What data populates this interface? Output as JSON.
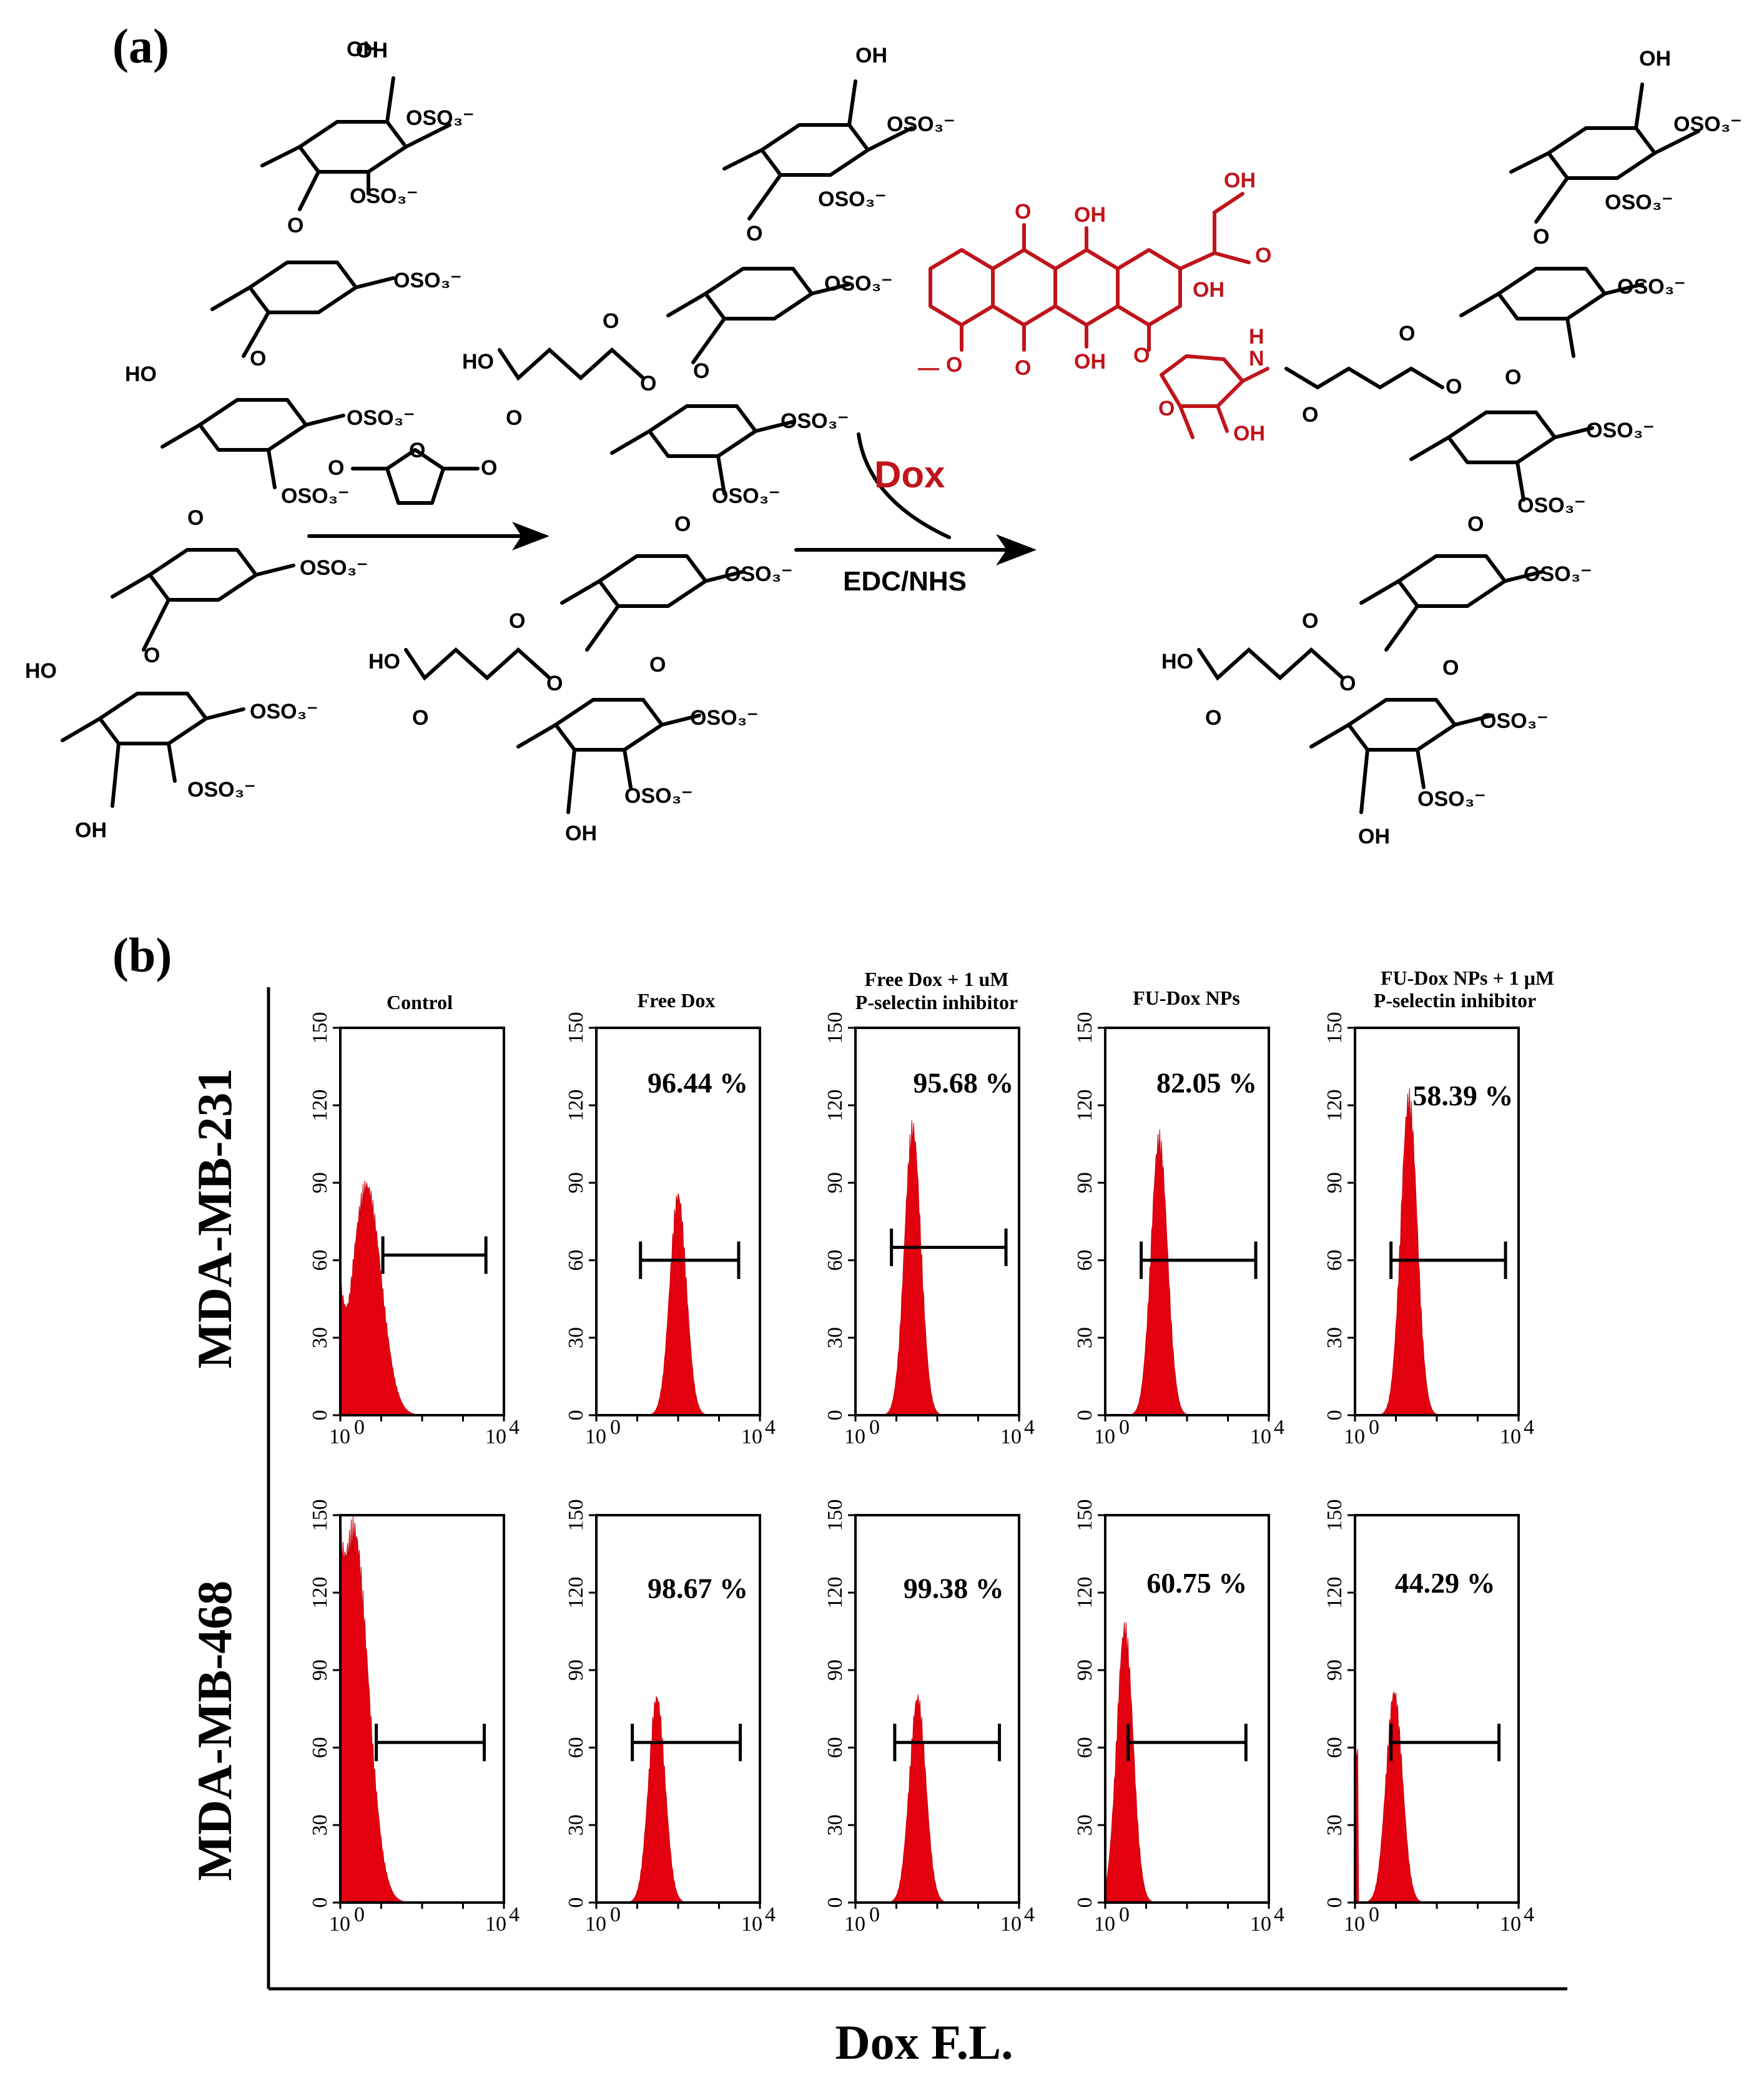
{
  "panels": {
    "a_label": "(a)",
    "b_label": "(b)"
  },
  "scheme": {
    "reagent_step1": "",
    "reagent_step2_red": "Dox",
    "reagent_step2": "EDC/NHS",
    "chem_labels": [
      "OH",
      "OSO3-",
      "HO",
      "O",
      "Dox"
    ]
  },
  "chart_data": {
    "type": "histogram",
    "x_axis_title": "Dox F.L.",
    "x_scale": "log",
    "x_tick_labels": [
      "10",
      "0",
      "10",
      "4"
    ],
    "y_ticks": [
      0,
      30,
      60,
      90,
      120,
      150
    ],
    "ylim": [
      0,
      150
    ],
    "columns": [
      "Control",
      "Free Dox",
      "Free Dox + 1 uM P-selectin inhibitor",
      "FU-Dox NPs",
      "FU-Dox NPs + 1 μM P-selectin inhibitor"
    ],
    "column_titles": [
      [
        "Control"
      ],
      [
        "Free Dox"
      ],
      [
        "Free Dox + 1 uM",
        "P-selectin inhibitor"
      ],
      [
        "FU-Dox NPs"
      ],
      [
        "FU-Dox NPs + 1 μM",
        "P-selectin inhibitor"
      ]
    ],
    "rows": [
      {
        "name": "MDA-MB-231",
        "percent_labels": [
          "",
          "96.44 %",
          "95.68 %",
          "82.05 %",
          "58.39 %"
        ],
        "peak_heights": [
          92,
          88,
          115,
          111,
          127
        ]
      },
      {
        "name": "MDA-MB-468",
        "percent_labels": [
          "",
          "98.67 %",
          "99.38 %",
          "60.75 %",
          "44.29 %"
        ],
        "peak_heights": [
          150,
          82,
          82,
          110,
          84
        ]
      }
    ],
    "histogram_color": "#e3000f"
  }
}
